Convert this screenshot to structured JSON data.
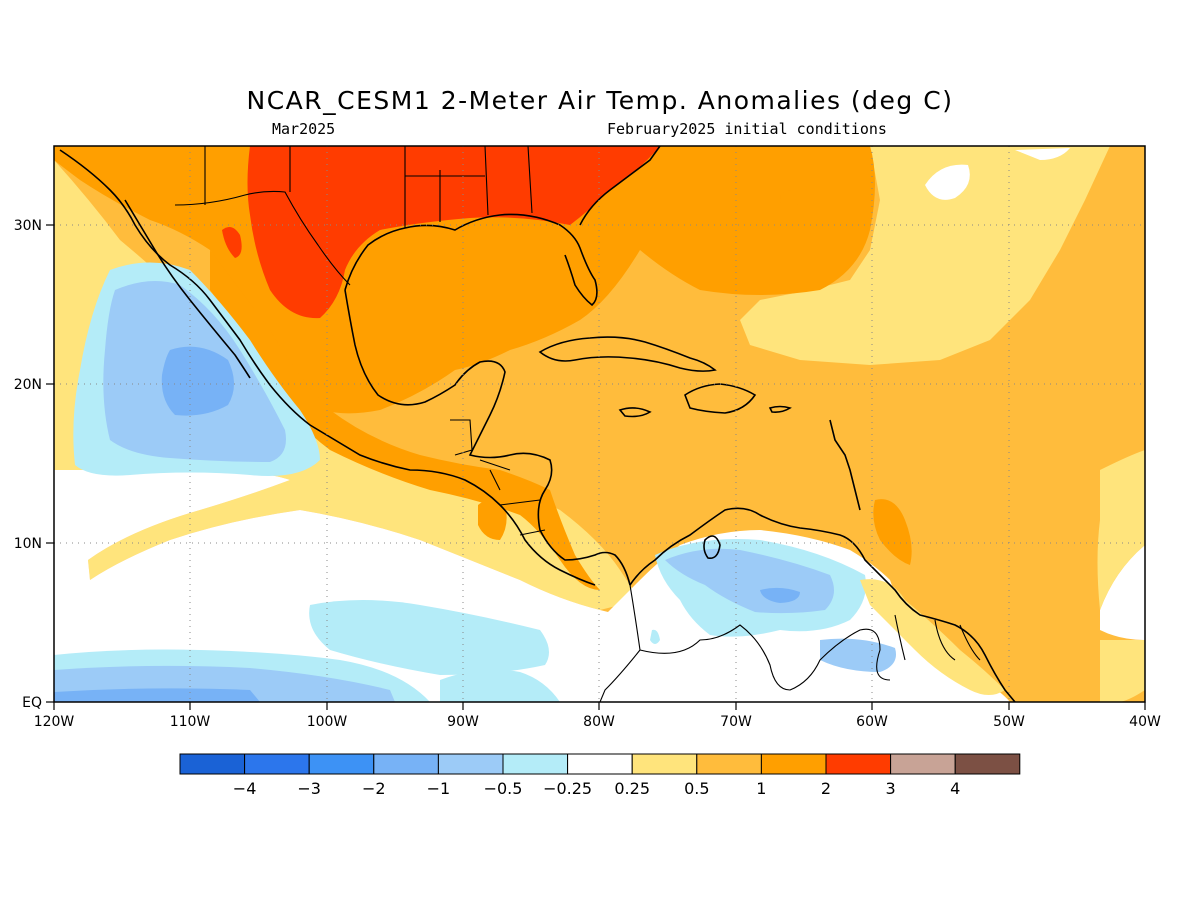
{
  "header": {
    "title": "NCAR_CESM1 2-Meter Air Temp. Anomalies (deg C)",
    "valid_month": "Mar2025",
    "init_conditions": "February2025 initial conditions"
  },
  "map": {
    "region": "Caribbean / Gulf of Mexico / Central America",
    "lon_range": [
      -120,
      -40
    ],
    "lat_range": [
      0,
      35
    ],
    "lon_labels": [
      "120W",
      "110W",
      "100W",
      "90W",
      "80W",
      "70W",
      "60W",
      "50W",
      "40W"
    ],
    "lat_labels": [
      "EQ",
      "10N",
      "20N",
      "30N"
    ],
    "gridlines": "dotted",
    "anomaly_features": [
      {
        "area": "Southern US / Northern Mexico",
        "category": "2 to 3"
      },
      {
        "area": "Gulf of Mexico",
        "category": "1 to 2"
      },
      {
        "area": "Caribbean Sea",
        "category": "0.5 to 1"
      },
      {
        "area": "Eastern Pacific off Baja California",
        "category": "-2 to -1"
      },
      {
        "area": "Northern South America (Venezuela)",
        "category": "-1 to -0.5"
      }
    ]
  },
  "colorbar": {
    "colors": [
      "#1a62d6",
      "#2c76ec",
      "#3d92f5",
      "#77b2f6",
      "#9ccbf7",
      "#b4ecf8",
      "#ffffff",
      "#ffe47c",
      "#ffbc3c",
      "#ff9f00",
      "#ff3c00",
      "#c8a396",
      "#7c5044"
    ],
    "labels": [
      "-4",
      "-3",
      "-2",
      "-1",
      "-0.5",
      "-0.25",
      "0.25",
      "0.5",
      "1",
      "2",
      "3",
      "4"
    ]
  }
}
